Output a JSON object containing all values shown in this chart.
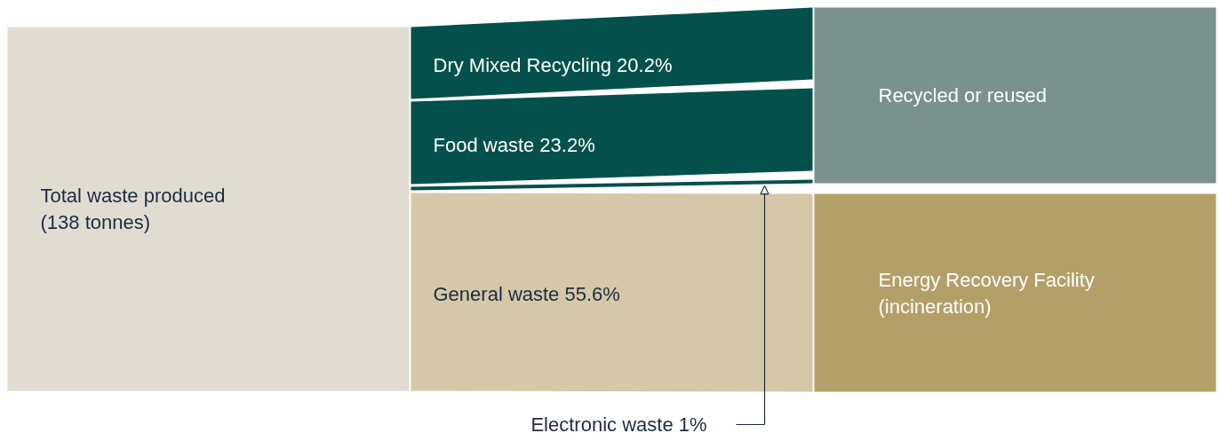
{
  "chart_data": {
    "type": "other",
    "categories": [
      "Dry Mixed Recycling",
      "Food waste",
      "Electronic waste",
      "General waste"
    ],
    "values": [
      20.2,
      23.2,
      1,
      55.6
    ],
    "value_labels": [
      "20.2%",
      "23.2%",
      "1%",
      "55.6%"
    ],
    "colors": [
      "#03514a",
      "#03514a",
      "#03514a",
      "#d4c8a8"
    ],
    "annotations": [
      "Total waste produced\n(138 tonnes)",
      "Recycled or reused",
      "Energy Recovery Facility\n(incineration)"
    ]
  }
}
